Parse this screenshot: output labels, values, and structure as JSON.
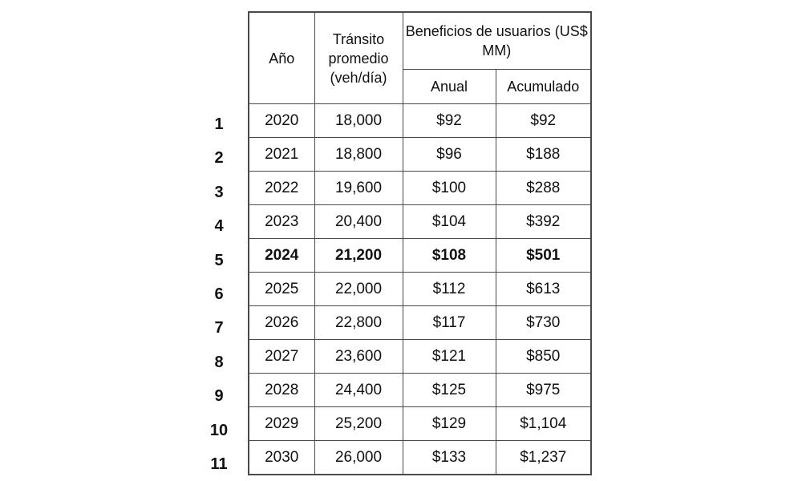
{
  "table": {
    "headers": {
      "year": "Año",
      "traffic": "Tránsito promedio (veh/día)",
      "benefits": "Beneficios de usuarios (US$ MM)",
      "annual": "Anual",
      "cumulative": "Acumulado"
    },
    "rows": [
      {
        "index": "1",
        "year": "2020",
        "traffic": "18,000",
        "annual": "$92",
        "cumulative": "$92",
        "bold": false
      },
      {
        "index": "2",
        "year": "2021",
        "traffic": "18,800",
        "annual": "$96",
        "cumulative": "$188",
        "bold": false
      },
      {
        "index": "3",
        "year": "2022",
        "traffic": "19,600",
        "annual": "$100",
        "cumulative": "$288",
        "bold": false
      },
      {
        "index": "4",
        "year": "2023",
        "traffic": "20,400",
        "annual": "$104",
        "cumulative": "$392",
        "bold": false
      },
      {
        "index": "5",
        "year": "2024",
        "traffic": "21,200",
        "annual": "$108",
        "cumulative": "$501",
        "bold": true
      },
      {
        "index": "6",
        "year": "2025",
        "traffic": "22,000",
        "annual": "$112",
        "cumulative": "$613",
        "bold": false
      },
      {
        "index": "7",
        "year": "2026",
        "traffic": "22,800",
        "annual": "$117",
        "cumulative": "$730",
        "bold": false
      },
      {
        "index": "8",
        "year": "2027",
        "traffic": "23,600",
        "annual": "$121",
        "cumulative": "$850",
        "bold": false
      },
      {
        "index": "9",
        "year": "2028",
        "traffic": "24,400",
        "annual": "$125",
        "cumulative": "$975",
        "bold": false
      },
      {
        "index": "10",
        "year": "2029",
        "traffic": "25,200",
        "annual": "$129",
        "cumulative": "$1,104",
        "bold": false
      },
      {
        "index": "11",
        "year": "2030",
        "traffic": "26,000",
        "annual": "$133",
        "cumulative": "$1,237",
        "bold": false
      }
    ]
  }
}
